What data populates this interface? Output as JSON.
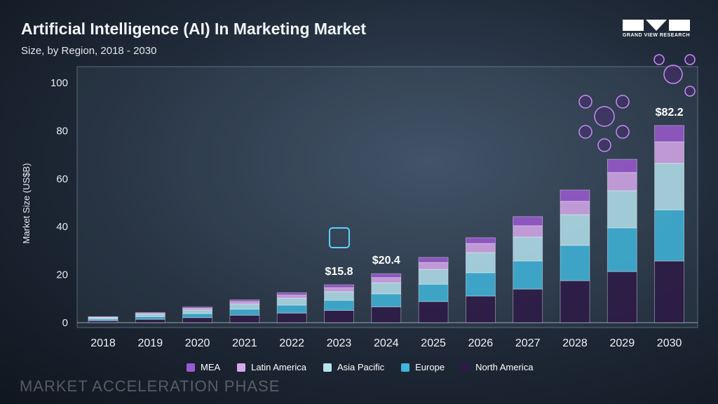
{
  "header": {
    "title": "Artificial Intelligence (AI) In Marketing Market",
    "subtitle": "Size, by Region, 2018 - 2030",
    "logo_text": "GRAND VIEW RESEARCH"
  },
  "footer": {
    "text": "MARKET ACCELERATION PHASE"
  },
  "chart_data": {
    "type": "bar",
    "stacked": true,
    "title": "Artificial Intelligence (AI) In Marketing Market",
    "subtitle": "Size, by Region, 2018 - 2030",
    "xlabel": "",
    "ylabel": "Market Size (US$B)",
    "ylim": [
      0,
      100
    ],
    "yticks": [
      0,
      20,
      40,
      60,
      80,
      100
    ],
    "categories": [
      "2018",
      "2019",
      "2020",
      "2021",
      "2022",
      "2023",
      "2024",
      "2025",
      "2026",
      "2027",
      "2028",
      "2029",
      "2030"
    ],
    "series": [
      {
        "name": "North America",
        "color": "#2e1a47",
        "values": [
          0.8,
          1.4,
          2.1,
          3.1,
          4.0,
          5.1,
          6.6,
          8.8,
          11.1,
          14.0,
          17.5,
          21.3,
          25.7
        ]
      },
      {
        "name": "Europe",
        "color": "#3fb6dc",
        "values": [
          0.7,
          1.1,
          1.7,
          2.5,
          3.3,
          4.2,
          5.4,
          7.2,
          9.7,
          11.7,
          14.7,
          18.2,
          21.3
        ]
      },
      {
        "name": "Asia Pacific",
        "color": "#b5e3ee",
        "values": [
          0.6,
          1.0,
          1.5,
          2.2,
          2.9,
          3.6,
          4.6,
          6.2,
          8.4,
          10.0,
          12.8,
          15.5,
          19.4
        ]
      },
      {
        "name": "Latin America",
        "color": "#d7a9ec",
        "values": [
          0.2,
          0.4,
          0.7,
          1.0,
          1.3,
          1.7,
          2.2,
          2.9,
          3.8,
          4.7,
          5.6,
          7.6,
          9.0
        ]
      },
      {
        "name": "MEA",
        "color": "#9b59d0",
        "values": [
          0.2,
          0.3,
          0.5,
          0.7,
          1.0,
          1.2,
          1.6,
          2.1,
          2.4,
          3.8,
          4.7,
          5.5,
          6.8
        ]
      }
    ],
    "data_labels": [
      {
        "category": "2023",
        "text": "$15.8"
      },
      {
        "category": "2024",
        "text": "$20.4"
      },
      {
        "category": "2030",
        "text": "$82.2"
      }
    ],
    "legend": {
      "placement": "bottom",
      "order": [
        "MEA",
        "Latin America",
        "Asia Pacific",
        "Europe",
        "North America"
      ]
    },
    "grid": false
  }
}
